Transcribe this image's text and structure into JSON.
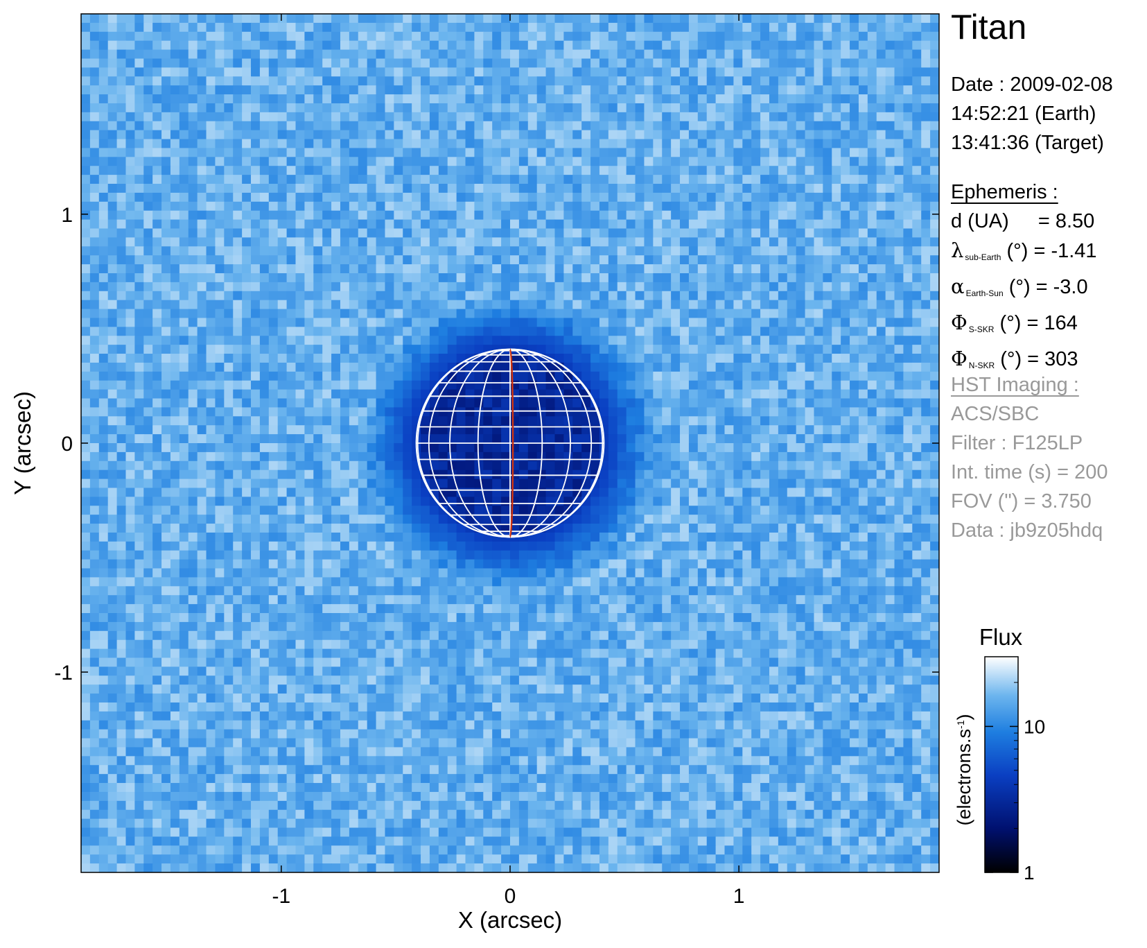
{
  "chart_data": {
    "type": "heatmap",
    "title": "",
    "xlabel": "X (arcsec)",
    "ylabel": "Y (arcsec)",
    "xlim": [
      -1.875,
      1.875
    ],
    "ylim": [
      -1.875,
      1.875
    ],
    "x_ticks": [
      -1,
      0,
      1
    ],
    "y_ticks": [
      1,
      0,
      -1
    ],
    "x_tick_labels": [
      "-1",
      "0",
      "1"
    ],
    "y_tick_labels": [
      "1",
      "0",
      "-1"
    ],
    "background_flux": 15,
    "disk": {
      "center": [
        0,
        0
      ],
      "radius_arcsec": 0.41,
      "min_flux": 3,
      "grid_color": "#ffffff",
      "central_meridian_color": "#cc3311"
    },
    "colorbar": {
      "label": "Flux",
      "unit_label": "(electrons.s",
      "unit_exp": "-1",
      "unit_close": ")",
      "scale": "log",
      "range": [
        1,
        30
      ],
      "ticks": [
        1,
        10
      ],
      "tick_labels": [
        "1",
        "10"
      ],
      "colors": [
        "#000000",
        "#00106e",
        "#0a3fc2",
        "#1e7ee0",
        "#6cb5ee",
        "#ffffff"
      ]
    }
  },
  "info": {
    "target": "Titan",
    "date_line": "Date : 2009-02-08",
    "earth_time": "14:52:21 (Earth)",
    "target_time": "13:41:36 (Target)",
    "ephemeris_heading": "Ephemeris :",
    "d_label": "d (UA)",
    "d_value": "= 8.50",
    "lambda_symbol": "λ",
    "lambda_sub": "sub-Earth",
    "lambda_value": "(°) = -1.41",
    "alpha_symbol": "α",
    "alpha_sub": "Earth-Sun",
    "alpha_value": "(°) = -3.0",
    "phi_symbol": "Φ",
    "phi_s_sub": "S-SKR",
    "phi_s_value": "(°)   = 164",
    "phi_n_sub": "N-SKR",
    "phi_n_value": "(°)   = 303",
    "hst_heading": "HST Imaging :",
    "instrument": "ACS/SBC",
    "filter": "Filter : F125LP",
    "int_time": "Int. time (s) = 200",
    "fov": "FOV (\") = 3.750",
    "data_id": "Data : jb9z05hdq"
  }
}
